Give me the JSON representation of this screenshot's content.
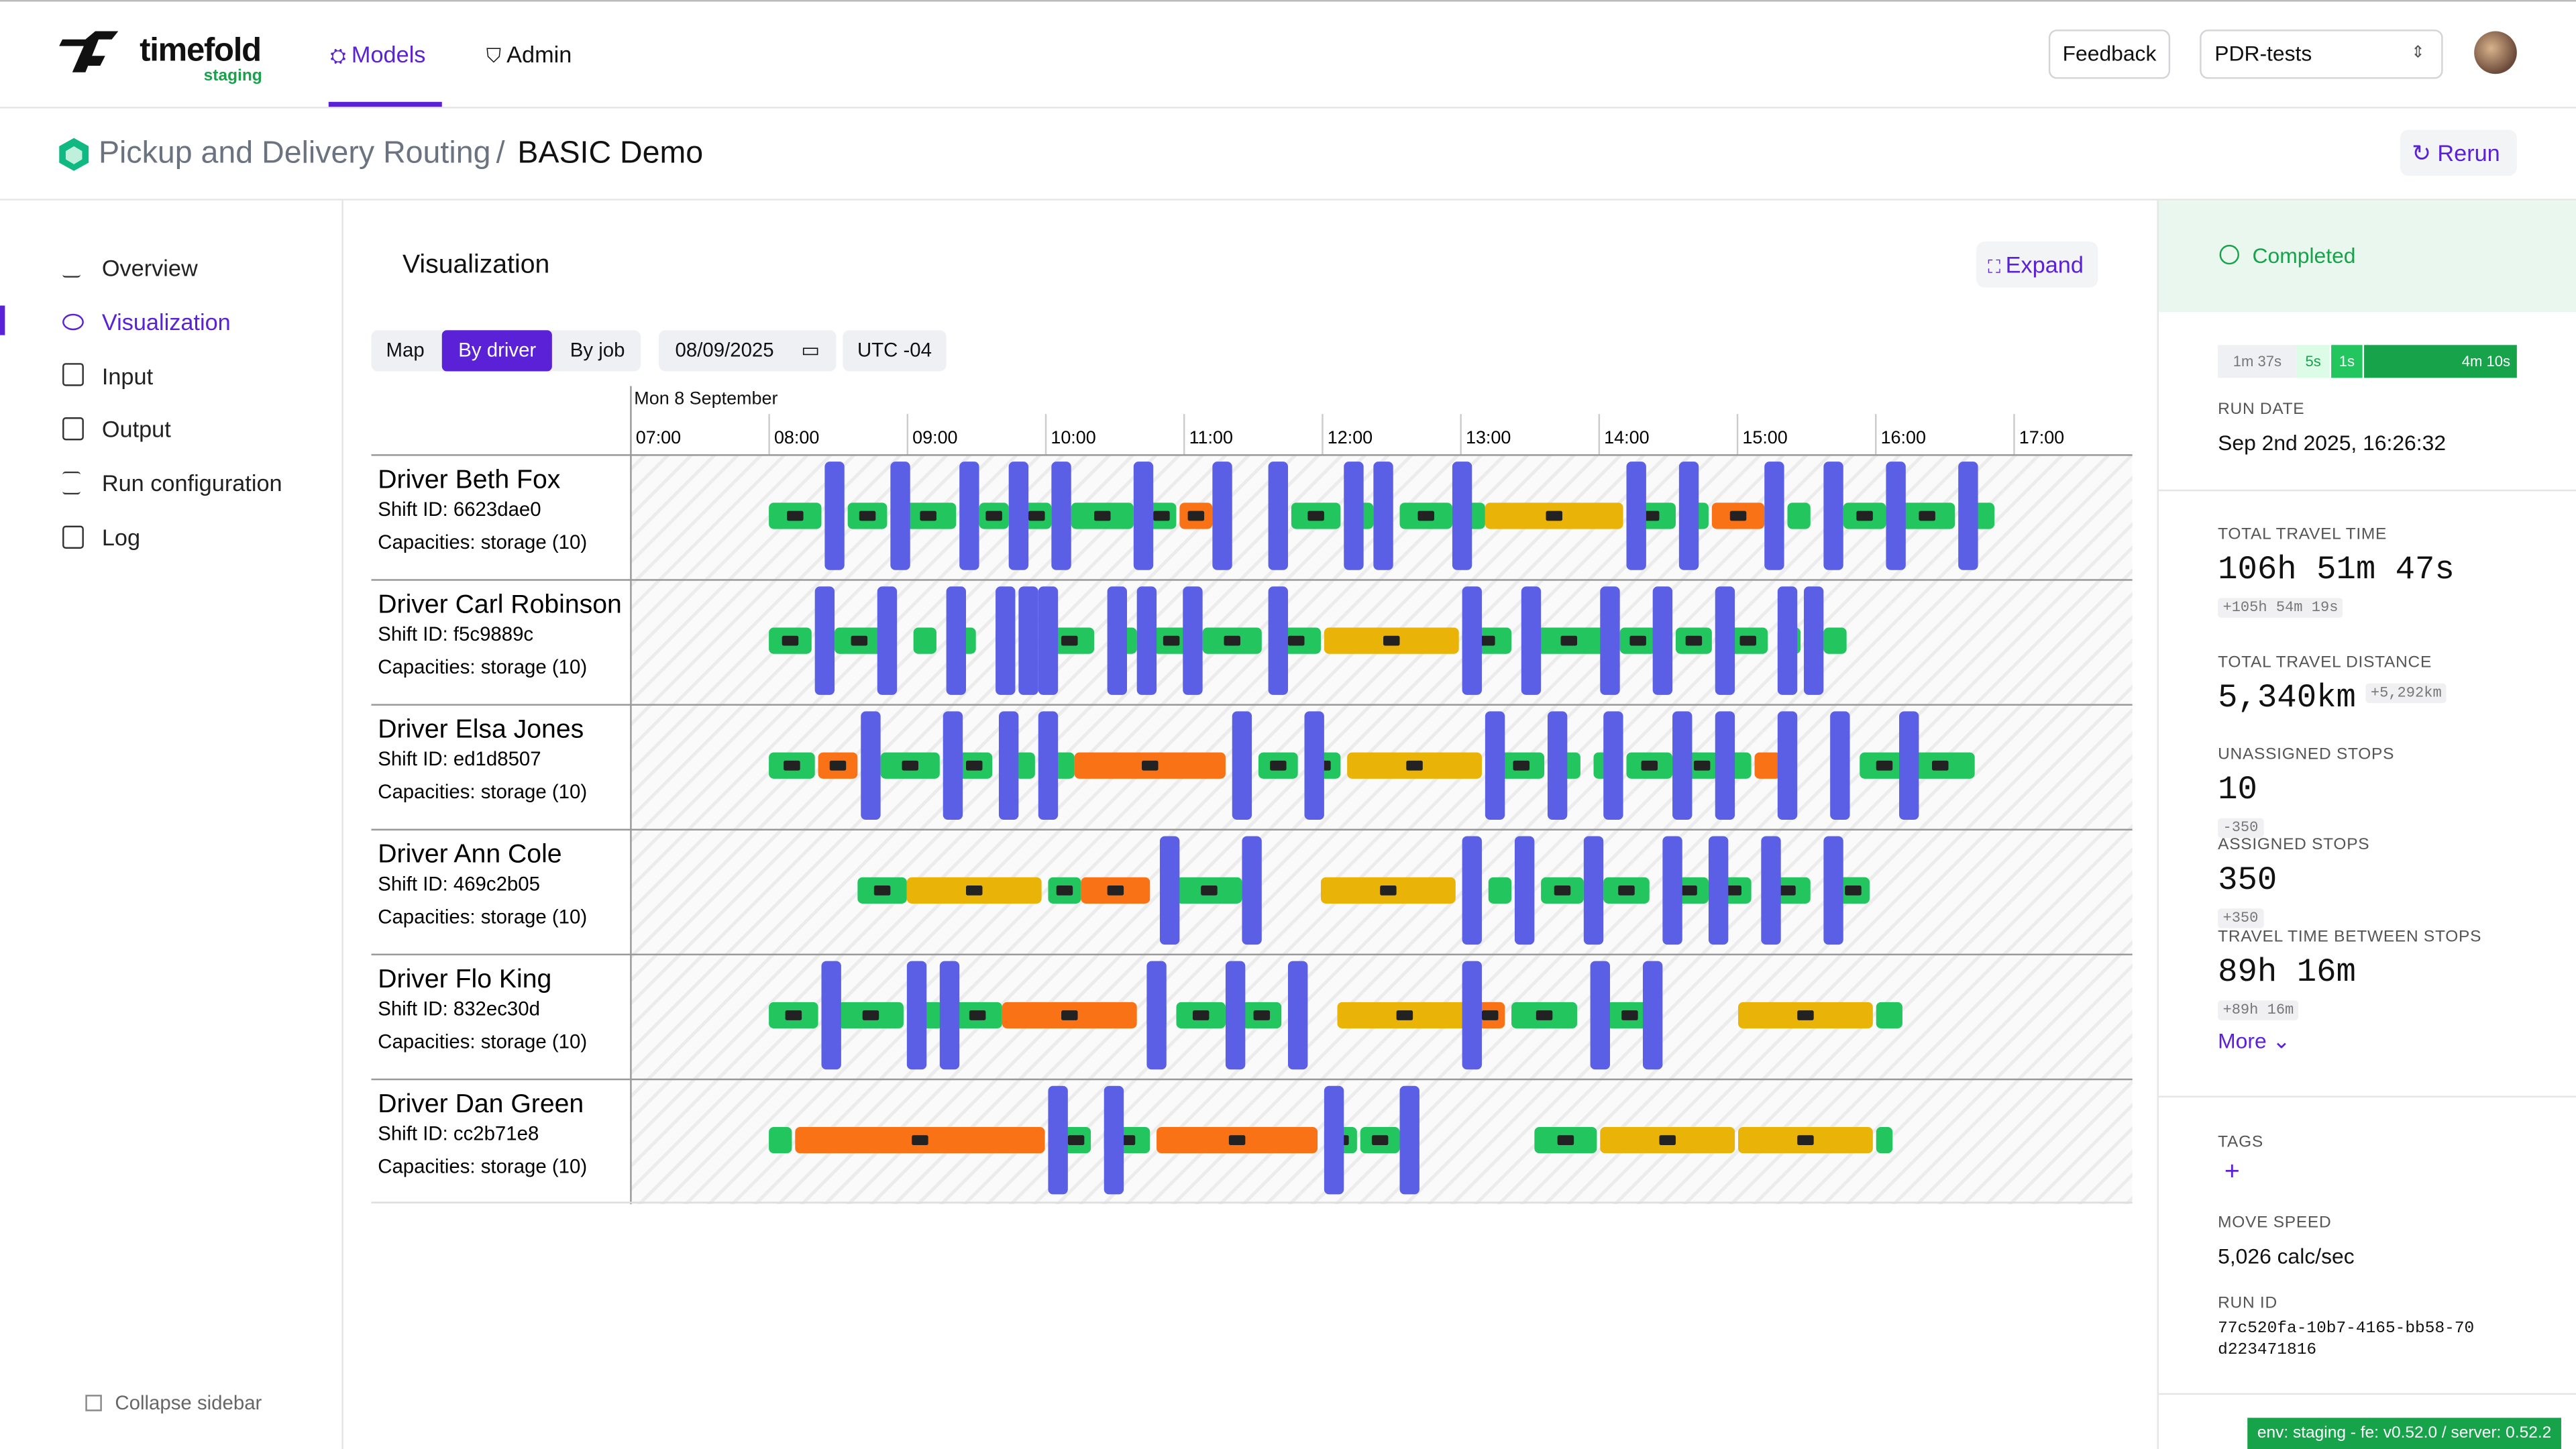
{
  "header": {
    "brand": "timefold",
    "env": "staging",
    "nav": [
      "Models",
      "Admin"
    ],
    "feedback": "Feedback",
    "project": "PDR-tests"
  },
  "breadcrumb": {
    "parent": "Pickup and Delivery Routing",
    "separator": "/",
    "current": "BASIC Demo",
    "rerun": "Rerun"
  },
  "sidebar": {
    "items": [
      "Overview",
      "Visualization",
      "Input",
      "Output",
      "Run configuration",
      "Log"
    ],
    "collapse": "Collapse sidebar"
  },
  "visualization": {
    "title": "Visualization",
    "expand": "Expand",
    "tabs": [
      "Map",
      "By driver",
      "By job"
    ],
    "date": "08/09/2025",
    "timezone": "UTC -04",
    "day": "Mon 8 September",
    "hours": [
      "07:00",
      "08:00",
      "09:00",
      "10:00",
      "11:00",
      "12:00",
      "13:00",
      "14:00",
      "15:00",
      "16:00",
      "17:00"
    ],
    "drivers": [
      {
        "name": "Driver Beth Fox",
        "shift": "Shift ID: 6623dae0",
        "capacities": "Capacities: storage (10)"
      },
      {
        "name": "Driver Carl Robinson",
        "shift": "Shift ID: f5c9889c",
        "capacities": "Capacities: storage (10)"
      },
      {
        "name": "Driver Elsa Jones",
        "shift": "Shift ID: ed1d8507",
        "capacities": "Capacities: storage (10)"
      },
      {
        "name": "Driver Ann Cole",
        "shift": "Shift ID: 469c2b05",
        "capacities": "Capacities: storage (10)"
      },
      {
        "name": "Driver Flo King",
        "shift": "Shift ID: 832ec30d",
        "capacities": "Capacities: storage (10)"
      },
      {
        "name": "Driver Dan Green",
        "shift": "Shift ID: cc2b71e8",
        "capacities": "Capacities: storage (10)"
      }
    ]
  },
  "status": {
    "state": "Completed",
    "phases": [
      "1m 37s",
      "5s",
      "1s",
      "4m 10s"
    ],
    "run_date_label": "RUN DATE",
    "run_date": "Sep 2nd 2025, 16:26:32",
    "metrics": [
      {
        "label": "TOTAL TRAVEL TIME",
        "value": "106h 51m 47s",
        "delta": "+105h 54m 19s"
      },
      {
        "label": "TOTAL TRAVEL DISTANCE",
        "value": "5,340km",
        "delta": "+5,292km"
      },
      {
        "label": "UNASSIGNED STOPS",
        "value": "10",
        "delta": "-350"
      },
      {
        "label": "ASSIGNED STOPS",
        "value": "350",
        "delta": "+350"
      },
      {
        "label": "TRAVEL TIME BETWEEN STOPS",
        "value": "89h 16m",
        "delta": "+89h 16m"
      }
    ],
    "more": "More",
    "tags_label": "TAGS",
    "move_speed_label": "MOVE SPEED",
    "move_speed": "5,026 calc/sec",
    "run_id_label": "RUN ID",
    "run_id": "77c520fa-10b7-4165-bb58-70d223471816"
  },
  "footer_env": "env: staging - fe: v0.52.0 / server: 0.52.2"
}
